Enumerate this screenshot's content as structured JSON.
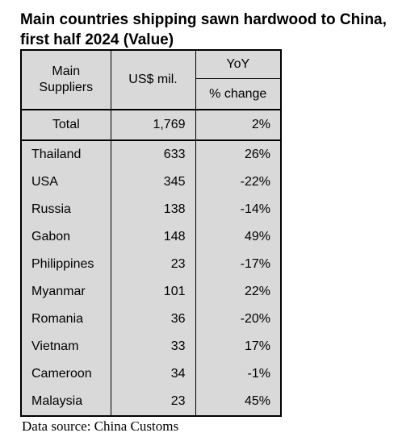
{
  "title": "Main countries shipping sawn hardwood to China, first half 2024 (Value)",
  "source": "Data source: China Customs",
  "chart_data": {
    "type": "table",
    "title": "Main countries shipping sawn hardwood to China, first half 2024 (Value)",
    "columns": [
      "Main Suppliers",
      "US$ mil.",
      "YoY % change"
    ],
    "header": {
      "supplier": "Main Suppliers",
      "value": "US$ mil.",
      "yoy_top": "YoY",
      "yoy_bottom": "% change"
    },
    "total": {
      "label": "Total",
      "value": "1,769",
      "yoy": "2%"
    },
    "rows": [
      {
        "country": "Thailand",
        "value": "633",
        "yoy": "26%"
      },
      {
        "country": "USA",
        "value": "345",
        "yoy": "-22%"
      },
      {
        "country": "Russia",
        "value": "138",
        "yoy": "-14%"
      },
      {
        "country": "Gabon",
        "value": "148",
        "yoy": "49%"
      },
      {
        "country": "Philippines",
        "value": "23",
        "yoy": "-17%"
      },
      {
        "country": "Myanmar",
        "value": "101",
        "yoy": "22%"
      },
      {
        "country": "Romania",
        "value": "36",
        "yoy": "-20%"
      },
      {
        "country": "Vietnam",
        "value": "33",
        "yoy": "17%"
      },
      {
        "country": "Cameroon",
        "value": "34",
        "yoy": "-1%"
      },
      {
        "country": "Malaysia",
        "value": "23",
        "yoy": "45%"
      }
    ]
  }
}
